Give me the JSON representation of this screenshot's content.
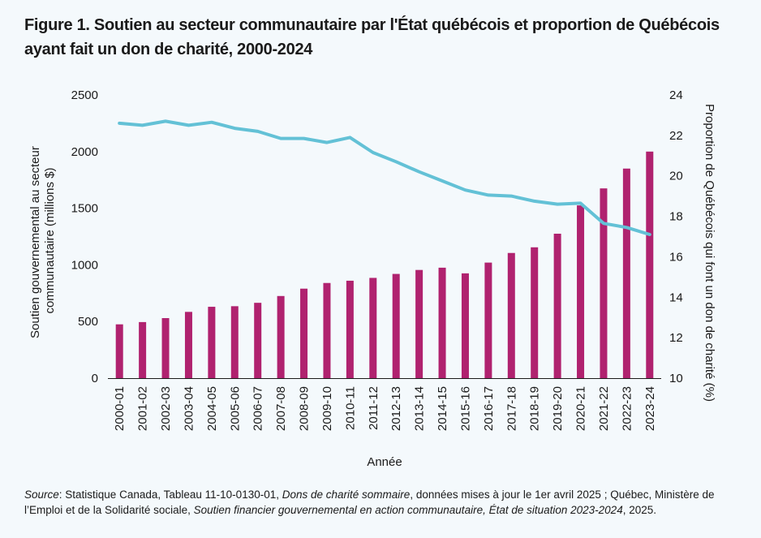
{
  "title_line1": "Figure 1. Soutien au secteur communautaire par l'État québécois et proportion de Québécois",
  "title_line2": "ayant fait un don de charité, 2000-2024",
  "source": {
    "label": "Source",
    "part1": ": Statistique Canada, Tableau 11-10-0130-01, ",
    "italic1": "Dons de charité sommaire",
    "part2": ", données mises à jour le 1er avril 2025 ; Québec, Ministère de l’Emploi et de la Solidarité sociale, ",
    "italic2": "Soutien financier gouvernemental en action communautaire, État de situation 2023-2024",
    "part3": ", 2025."
  },
  "chart_data": {
    "type": "bar+line",
    "xlabel": "Année",
    "ylabel_left": "Soutien gouvernemental au secteur communautaire (millions $)",
    "ylabel_left_lines": [
      "Soutien gouvernemental au secteur",
      "communautaire (millions $)"
    ],
    "ylabel_right": "Proportion de Québécois qui font un don de charité (%)",
    "ylim_left": [
      0,
      2500
    ],
    "yticks_left": [
      0,
      500,
      1000,
      1500,
      2000,
      2500
    ],
    "ylim_right": [
      10,
      24
    ],
    "yticks_right": [
      10,
      12,
      14,
      16,
      18,
      20,
      22,
      24
    ],
    "categories": [
      "2000-01",
      "2001-02",
      "2002-03",
      "2003-04",
      "2004-05",
      "2005-06",
      "2006-07",
      "2007-08",
      "2008-09",
      "2009-10",
      "2010-11",
      "2011-12",
      "2012-13",
      "2013-14",
      "2014-15",
      "2015-16",
      "2016-17",
      "2017-18",
      "2018-19",
      "2019-20",
      "2020-21",
      "2021-22",
      "2022-23",
      "2023-24"
    ],
    "series": [
      {
        "kind": "bar",
        "axis": "left",
        "color": "#b0226f",
        "values": [
          475,
          495,
          530,
          585,
          630,
          635,
          665,
          725,
          790,
          840,
          860,
          885,
          920,
          955,
          975,
          925,
          1020,
          1105,
          1155,
          1275,
          1525,
          1675,
          1850,
          2000
        ]
      },
      {
        "kind": "line",
        "axis": "right",
        "color": "#63c1d6",
        "values": [
          22.6,
          22.5,
          22.7,
          22.5,
          22.65,
          22.35,
          22.2,
          21.85,
          21.85,
          21.65,
          21.9,
          21.15,
          20.7,
          20.2,
          19.75,
          19.3,
          19.05,
          19.0,
          18.75,
          18.6,
          18.65,
          17.65,
          17.45,
          17.1
        ]
      }
    ],
    "grid": false
  }
}
